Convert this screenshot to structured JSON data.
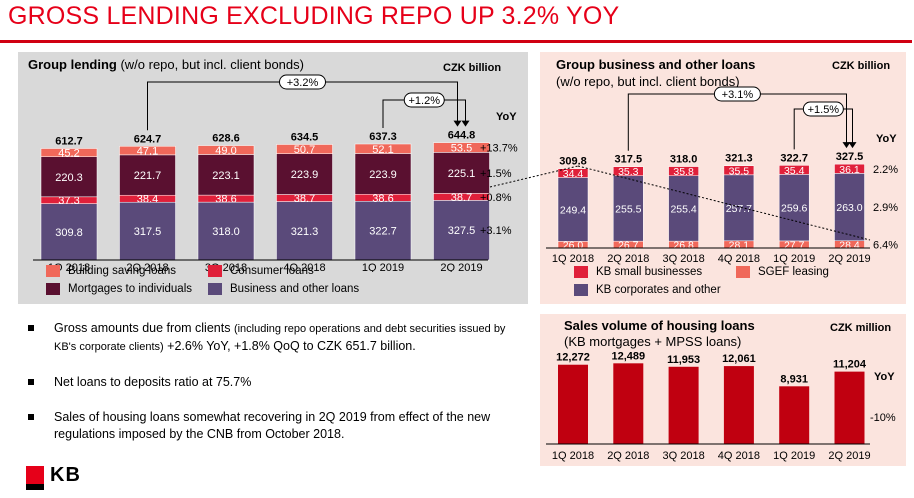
{
  "page_title": "GROSS LENDING EXCLUDING REPO UP 3.2% YOY",
  "colors": {
    "accent_red": "#e60019",
    "building_saving": "#f0685a",
    "consumer": "#e0203a",
    "mortgages": "#5a1030",
    "business": "#5a4a7a",
    "sales_bar": "#c00010"
  },
  "panel_left": {
    "title_bold": "Group lending",
    "title_rest": " (w/o repo, but incl. client bonds)",
    "unit": "CZK billion",
    "yoy_header": "YoY",
    "legend": [
      {
        "label": "Building saving loans",
        "color": "#f0685a"
      },
      {
        "label": "Consumer loans",
        "color": "#e0203a"
      },
      {
        "label": "Mortgages to individuals",
        "color": "#5a1030"
      },
      {
        "label": "Business and other loans",
        "color": "#5a4a7a"
      }
    ]
  },
  "panel_right_top": {
    "title_bold": "Group business and other loans",
    "title_rest": "(w/o repo, but incl. client bonds)",
    "unit": "CZK billion",
    "yoy_header": "YoY",
    "legend": [
      {
        "label": "KB small businesses",
        "color": "#e0203a"
      },
      {
        "label": "SGEF leasing",
        "color": "#f0685a"
      },
      {
        "label": "KB corporates and other",
        "color": "#5a4a7a"
      }
    ]
  },
  "panel_right_bottom": {
    "title_line1": "Sales volume of housing loans",
    "title_line2": "(KB mortgages + MPSS loans)",
    "unit": "CZK million",
    "yoy_header": "YoY"
  },
  "bullets": [
    {
      "main": "Gross amounts due from clients ",
      "small": "(including repo operations and debt securities issued by KB's corporate clients)",
      "tail": " +2.6% YoY, +1.8% QoQ to CZK 651.7 billion."
    },
    {
      "main": "Net loans to deposits ratio at 75.7%",
      "small": "",
      "tail": ""
    },
    {
      "main": "Sales of housing loans somewhat recovering in 2Q 2019 from effect of the new regulations imposed by the CNB from October 2018.",
      "small": "",
      "tail": ""
    }
  ],
  "logo_text": "KB",
  "chart_data": [
    {
      "type": "bar",
      "stacked": true,
      "title": "Group lending (w/o repo, but incl. client bonds)",
      "unit": "CZK billion",
      "categories": [
        "1Q 2018",
        "2Q 2018",
        "3Q 2018",
        "4Q 2018",
        "1Q 2019",
        "2Q 2019"
      ],
      "series": [
        {
          "name": "Business and other loans",
          "values": [
            309.8,
            317.5,
            318.0,
            321.3,
            322.7,
            327.5
          ]
        },
        {
          "name": "Consumer loans",
          "values": [
            37.3,
            38.4,
            38.6,
            38.7,
            38.6,
            38.7
          ]
        },
        {
          "name": "Mortgages to individuals",
          "values": [
            220.3,
            221.7,
            223.1,
            223.9,
            223.9,
            225.1
          ]
        },
        {
          "name": "Building saving loans",
          "values": [
            45.2,
            47.1,
            49.0,
            50.7,
            52.1,
            53.5
          ]
        }
      ],
      "totals": [
        "612.7",
        "624.7",
        "628.6",
        "634.5",
        "637.3",
        "644.8"
      ],
      "yoy": [
        "+13.7%",
        "+1.5%",
        "+0.8%",
        "+3.1%"
      ],
      "arrows": [
        {
          "from": "2Q 2018",
          "to": "2Q 2019",
          "label": "+3.2%"
        },
        {
          "from": "1Q 2019",
          "to": "2Q 2019",
          "label": "+1.2%"
        }
      ]
    },
    {
      "type": "bar",
      "stacked": true,
      "title": "Group business and other loans (w/o repo, but incl. client bonds)",
      "unit": "CZK billion",
      "categories": [
        "1Q 2018",
        "2Q 2018",
        "3Q 2018",
        "4Q 2018",
        "1Q 2019",
        "2Q 2019"
      ],
      "series": [
        {
          "name": "SGEF leasing",
          "values": [
            26.0,
            26.7,
            26.8,
            28.1,
            27.7,
            28.4
          ]
        },
        {
          "name": "KB corporates and other",
          "values": [
            249.4,
            255.5,
            255.4,
            257.7,
            259.6,
            263.0
          ]
        },
        {
          "name": "KB small businesses",
          "values": [
            34.4,
            35.3,
            35.8,
            35.5,
            35.4,
            36.1
          ]
        }
      ],
      "totals": [
        "309.8",
        "317.5",
        "318.0",
        "321.3",
        "322.7",
        "327.5"
      ],
      "yoy": [
        "2.2%",
        "2.9%",
        "6.4%"
      ],
      "arrows": [
        {
          "from": "2Q 2018",
          "to": "2Q 2019",
          "label": "+3.1%"
        },
        {
          "from": "1Q 2019",
          "to": "2Q 2019",
          "label": "+1.5%"
        }
      ]
    },
    {
      "type": "bar",
      "title": "Sales volume of housing loans (KB mortgages + MPSS loans)",
      "unit": "CZK million",
      "categories": [
        "1Q 2018",
        "2Q 2018",
        "3Q 2018",
        "4Q 2018",
        "1Q 2019",
        "2Q 2019"
      ],
      "values": [
        12272,
        12489,
        11953,
        12061,
        8931,
        11204
      ],
      "value_labels": [
        "12,272",
        "12,489",
        "11,953",
        "12,061",
        "8,931",
        "11,204"
      ],
      "yoy": [
        "-10%"
      ]
    }
  ]
}
